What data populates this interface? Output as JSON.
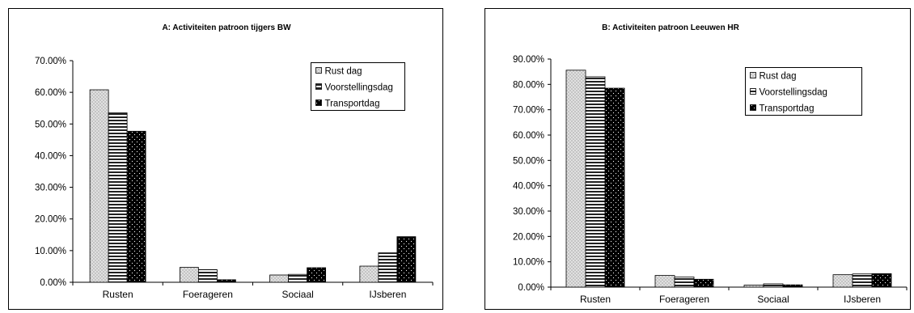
{
  "chart_data": [
    {
      "type": "bar",
      "title": "A: Activiteiten patroon tijgers BW",
      "categories": [
        "Rusten",
        "Foerageren",
        "Sociaal",
        "IJsberen"
      ],
      "series": [
        {
          "name": "Rust dag",
          "values": [
            60.8,
            4.7,
            2.3,
            5.1
          ]
        },
        {
          "name": "Voorstellingsdag",
          "values": [
            53.5,
            4.0,
            2.5,
            9.3
          ]
        },
        {
          "name": "Transportdag",
          "values": [
            47.7,
            0.8,
            4.6,
            14.4
          ]
        }
      ],
      "ylim": [
        0,
        70
      ],
      "yticks": [
        "0.00%",
        "10.00%",
        "20.00%",
        "30.00%",
        "40.00%",
        "50.00%",
        "60.00%",
        "70.00%"
      ],
      "legend_position": "top-right",
      "grid": false
    },
    {
      "type": "bar",
      "title": "B: Activiteiten patroon Leeuwen HR",
      "categories": [
        "Rusten",
        "Foerageren",
        "Sociaal",
        "IJsberen"
      ],
      "series": [
        {
          "name": "Rust dag",
          "values": [
            85.6,
            4.6,
            0.8,
            4.9
          ]
        },
        {
          "name": "Voorstellingsdag",
          "values": [
            83.0,
            4.0,
            1.3,
            5.2
          ]
        },
        {
          "name": "Transportdag",
          "values": [
            78.5,
            3.1,
            0.9,
            5.3
          ]
        }
      ],
      "ylim": [
        0,
        90
      ],
      "yticks": [
        "0.00%",
        "10.00%",
        "20.00%",
        "30.00%",
        "40.00%",
        "50.00%",
        "60.00%",
        "70.00%",
        "80.00%",
        "90.00%"
      ],
      "legend_position": "top-right",
      "grid": false
    }
  ]
}
